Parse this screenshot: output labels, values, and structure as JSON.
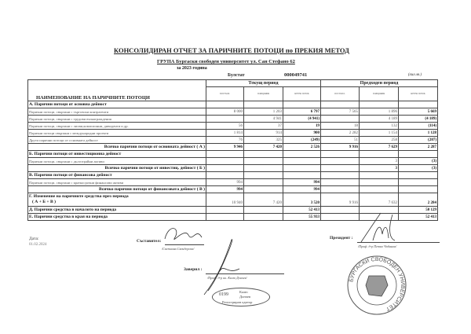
{
  "header": {
    "title": "КОНСОЛИДИРАН ОТЧЕТ ЗА ПАРИЧНИТЕ ПОТОЦИ по ПРЕКИЯ МЕТОД",
    "group": "ГРУПА  Бургаски свободен университет ул. Сан Стефано 62",
    "year": "за  2023 година",
    "bulstat_label": "Булстат",
    "bulstat_value": "000049741",
    "unit": "(хил.лв.)"
  },
  "table": {
    "name_header": "НАИМЕНОВАНИЕ НА ПАРИЧНИТЕ ПОТОЦИ",
    "current_period": "Текущ период",
    "previous_period": "Предходен период",
    "subcols": [
      "постъпл.",
      "плащания",
      "нетен поток",
      "постъпл.",
      "плащания",
      "нетен поток"
    ],
    "rows": [
      {
        "type": "sec",
        "label": "А. Парични потоци от основна дейност",
        "v": [
          "",
          "",
          "",
          "",
          "",
          ""
        ]
      },
      {
        "type": "item",
        "label": "Парични потоци, свързани с търговски контрагенти",
        "v": [
          "8 000",
          "1 203",
          "6 797",
          "7 565",
          "1 896",
          "5 669"
        ]
      },
      {
        "type": "item",
        "label": "Парични потоци, свързани с трудови възнаграждения",
        "v": [
          "",
          "4 941",
          "(4 941)",
          "",
          "4 189",
          "(4 189)"
        ]
      },
      {
        "type": "item",
        "label": "Парични потоци, свързани с лихви,комисионни, дивиденти и др.",
        "v": [
          "56",
          "37",
          "19",
          "18",
          "132",
          "(114)"
        ]
      },
      {
        "type": "item",
        "label": "Парични потоци свързани с международни проекти",
        "v": [
          "1 814",
          "914",
          "900",
          "2 282",
          "1 154",
          "1 128"
        ]
      },
      {
        "type": "item",
        "label": "Други парични потоци от основната дейност",
        "v": [
          "76",
          "325",
          "(249)",
          "51",
          "258",
          "(207)"
        ]
      },
      {
        "type": "tot",
        "label": "Всичко парични потоци от основната дейност  ( А )",
        "v": [
          "9 946",
          "7 420",
          "2 526",
          "9 916",
          "7 629",
          "2 287"
        ]
      },
      {
        "type": "sec",
        "label": "Б. Парични потоци от инвестиционна дейност",
        "v": [
          "",
          "",
          "",
          "",
          "",
          ""
        ]
      },
      {
        "type": "item",
        "label": "Парични потоци, свързани с дълготрайни активи",
        "v": [
          "",
          "",
          "",
          "",
          "3",
          "(3)"
        ]
      },
      {
        "type": "tot",
        "label": "Всичко парични потоци от инвестиц. дейност  ( Б )",
        "v": [
          "",
          "",
          "",
          "",
          "3",
          "(3)"
        ]
      },
      {
        "type": "sec",
        "label": "В. Парични потоци от финансова дейност",
        "v": [
          "",
          "",
          "",
          "",
          "",
          ""
        ]
      },
      {
        "type": "item",
        "label": "Парични потоци, свързани с краткосрочни  финансови  активи",
        "v": [
          "994",
          "",
          "994",
          "",
          "",
          ""
        ]
      },
      {
        "type": "tot",
        "label": "Всичко парични потоци от финансовата дейност  ( В )",
        "v": [
          "994",
          "",
          "994",
          "",
          "",
          ""
        ]
      },
      {
        "type": "change",
        "label": "Г. Изменение на паричните средства през периода",
        "label2": "( А + Б + В )",
        "v": [
          "10 940",
          "7 420",
          "3 520",
          "9 916",
          "7 632",
          "2 284"
        ]
      },
      {
        "type": "sec",
        "label": "Д. Парични средства в началото на периода",
        "v": [
          "",
          "",
          "52 413",
          "",
          "",
          "50 129"
        ]
      },
      {
        "type": "sec",
        "label": "Е. Парични средства в края на периода",
        "v": [
          "",
          "",
          "55 933",
          "",
          "",
          "52 413"
        ]
      }
    ]
  },
  "footer": {
    "date_label": "Дата:",
    "date_value": "01.02.2024",
    "compiler_label": "Съставител:",
    "compiler_name": "/Светлана Скендерска/",
    "verified_label": "Заверил :",
    "verified_name": "/Проф. д-р ик. Калю Дончев/",
    "president_label": "Президент :",
    "president_name": "/Проф. д-р Петко Чобанов/",
    "stamp_auditor": [
      "0199",
      "Калю",
      "Дончев",
      "Регистриран одитор"
    ],
    "stamp_university": "БУРГАСКИ СВОБОДЕН УНИВЕРСИТЕТ"
  }
}
